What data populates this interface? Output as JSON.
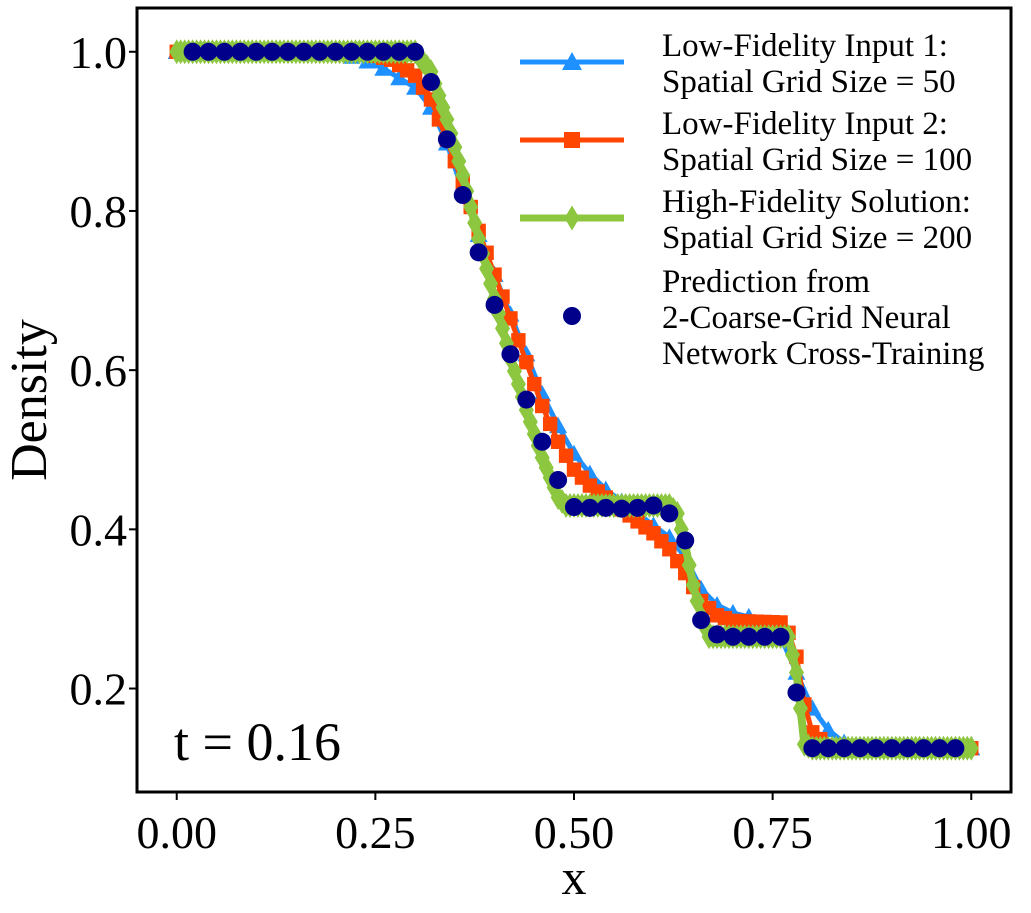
{
  "chart_data": {
    "type": "line",
    "xlabel": "x",
    "ylabel": "Density",
    "xlim": [
      -0.05,
      1.05
    ],
    "ylim": [
      0.07,
      1.055
    ],
    "xticks": [
      0.0,
      0.25,
      0.5,
      0.75,
      1.0
    ],
    "xtick_labels": [
      "0.00",
      "0.25",
      "0.50",
      "0.75",
      "1.00"
    ],
    "yticks": [
      0.2,
      0.4,
      0.6,
      0.8,
      1.0
    ],
    "ytick_labels": [
      "0.2",
      "0.4",
      "0.6",
      "0.8",
      "1.0"
    ],
    "annotation": "t = 0.16",
    "legend_position": "top-right",
    "grid": false,
    "series": [
      {
        "name": [
          "Low-Fidelity Input 1:",
          "Spatial Grid Size = 50"
        ],
        "color": "#1e90ff",
        "marker": "triangle",
        "profile": [
          [
            0,
            1.0
          ],
          [
            0.2,
            1.0
          ],
          [
            0.25,
            0.985
          ],
          [
            0.3,
            0.955
          ],
          [
            0.32,
            0.93
          ],
          [
            0.34,
            0.885
          ],
          [
            0.36,
            0.825
          ],
          [
            0.38,
            0.77
          ],
          [
            0.4,
            0.72
          ],
          [
            0.42,
            0.67
          ],
          [
            0.44,
            0.62
          ],
          [
            0.46,
            0.57
          ],
          [
            0.48,
            0.53
          ],
          [
            0.5,
            0.495
          ],
          [
            0.52,
            0.47
          ],
          [
            0.54,
            0.45
          ],
          [
            0.56,
            0.435
          ],
          [
            0.58,
            0.42
          ],
          [
            0.6,
            0.405
          ],
          [
            0.62,
            0.39
          ],
          [
            0.64,
            0.365
          ],
          [
            0.66,
            0.325
          ],
          [
            0.68,
            0.305
          ],
          [
            0.7,
            0.295
          ],
          [
            0.72,
            0.29
          ],
          [
            0.74,
            0.28
          ],
          [
            0.76,
            0.265
          ],
          [
            0.78,
            0.22
          ],
          [
            0.8,
            0.175
          ],
          [
            0.82,
            0.148
          ],
          [
            0.84,
            0.132
          ],
          [
            0.86,
            0.126
          ],
          [
            1.0,
            0.125
          ]
        ]
      },
      {
        "name": [
          "Low-Fidelity Input 2:",
          "Spatial Grid Size = 100"
        ],
        "color": "#ff4500",
        "marker": "square",
        "profile": [
          [
            0,
            1.0
          ],
          [
            0.23,
            1.0
          ],
          [
            0.27,
            0.99
          ],
          [
            0.3,
            0.97
          ],
          [
            0.32,
            0.94
          ],
          [
            0.34,
            0.89
          ],
          [
            0.36,
            0.835
          ],
          [
            0.38,
            0.775
          ],
          [
            0.4,
            0.72
          ],
          [
            0.42,
            0.665
          ],
          [
            0.44,
            0.61
          ],
          [
            0.46,
            0.555
          ],
          [
            0.48,
            0.51
          ],
          [
            0.5,
            0.475
          ],
          [
            0.52,
            0.455
          ],
          [
            0.54,
            0.44
          ],
          [
            0.56,
            0.425
          ],
          [
            0.58,
            0.41
          ],
          [
            0.6,
            0.395
          ],
          [
            0.62,
            0.375
          ],
          [
            0.64,
            0.345
          ],
          [
            0.66,
            0.31
          ],
          [
            0.68,
            0.292
          ],
          [
            0.7,
            0.285
          ],
          [
            0.76,
            0.283
          ],
          [
            0.77,
            0.27
          ],
          [
            0.78,
            0.24
          ],
          [
            0.79,
            0.18
          ],
          [
            0.8,
            0.145
          ],
          [
            0.82,
            0.128
          ],
          [
            1.0,
            0.125
          ]
        ]
      },
      {
        "name": [
          "High-Fidelity Solution:",
          "Spatial Grid Size = 200"
        ],
        "color": "#8dc63f",
        "marker": "diamond",
        "profile": [
          [
            0,
            1.0
          ],
          [
            0.3,
            1.0
          ],
          [
            0.32,
            0.975
          ],
          [
            0.34,
            0.915
          ],
          [
            0.36,
            0.845
          ],
          [
            0.38,
            0.765
          ],
          [
            0.4,
            0.69
          ],
          [
            0.42,
            0.615
          ],
          [
            0.44,
            0.55
          ],
          [
            0.46,
            0.49
          ],
          [
            0.48,
            0.44
          ],
          [
            0.49,
            0.43
          ],
          [
            0.5,
            0.43
          ],
          [
            0.62,
            0.43
          ],
          [
            0.63,
            0.42
          ],
          [
            0.64,
            0.38
          ],
          [
            0.65,
            0.33
          ],
          [
            0.66,
            0.29
          ],
          [
            0.67,
            0.265
          ],
          [
            0.68,
            0.265
          ],
          [
            0.77,
            0.265
          ],
          [
            0.78,
            0.22
          ],
          [
            0.79,
            0.13
          ],
          [
            0.8,
            0.125
          ],
          [
            1.0,
            0.125
          ]
        ]
      },
      {
        "name": [
          "Prediction from",
          "2-Coarse-Grid Neural",
          "Network Cross-Training"
        ],
        "color": "#00008b",
        "marker": "circle",
        "points": [
          [
            0.02,
            1.0
          ],
          [
            0.04,
            1.0
          ],
          [
            0.06,
            1.0
          ],
          [
            0.08,
            1.0
          ],
          [
            0.1,
            1.0
          ],
          [
            0.12,
            1.0
          ],
          [
            0.14,
            1.0
          ],
          [
            0.16,
            1.0
          ],
          [
            0.18,
            1.0
          ],
          [
            0.2,
            1.0
          ],
          [
            0.22,
            1.0
          ],
          [
            0.24,
            1.0
          ],
          [
            0.26,
            1.0
          ],
          [
            0.28,
            1.0
          ],
          [
            0.3,
            1.0
          ],
          [
            0.32,
            0.962
          ],
          [
            0.34,
            0.89
          ],
          [
            0.36,
            0.82
          ],
          [
            0.38,
            0.748
          ],
          [
            0.4,
            0.682
          ],
          [
            0.42,
            0.62
          ],
          [
            0.44,
            0.563
          ],
          [
            0.46,
            0.51
          ],
          [
            0.48,
            0.462
          ],
          [
            0.5,
            0.428
          ],
          [
            0.52,
            0.427
          ],
          [
            0.54,
            0.427
          ],
          [
            0.56,
            0.426
          ],
          [
            0.58,
            0.427
          ],
          [
            0.6,
            0.43
          ],
          [
            0.62,
            0.42
          ],
          [
            0.64,
            0.386
          ],
          [
            0.66,
            0.286
          ],
          [
            0.68,
            0.268
          ],
          [
            0.7,
            0.265
          ],
          [
            0.72,
            0.265
          ],
          [
            0.74,
            0.265
          ],
          [
            0.76,
            0.265
          ],
          [
            0.78,
            0.195
          ],
          [
            0.8,
            0.125
          ],
          [
            0.82,
            0.125
          ],
          [
            0.84,
            0.125
          ],
          [
            0.86,
            0.125
          ],
          [
            0.88,
            0.125
          ],
          [
            0.9,
            0.125
          ],
          [
            0.92,
            0.125
          ],
          [
            0.94,
            0.125
          ],
          [
            0.96,
            0.125
          ],
          [
            0.98,
            0.125
          ]
        ]
      }
    ]
  }
}
